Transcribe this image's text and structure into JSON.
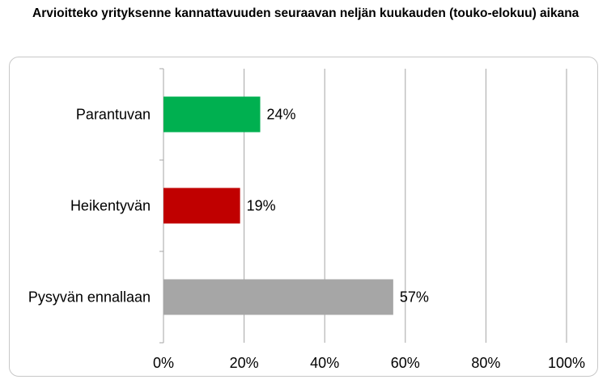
{
  "chart_data": {
    "type": "bar",
    "orientation": "horizontal",
    "title": "Arvioitteko yrityksenne kannattavuuden seuraavan neljän kuukauden (touko-elokuu) aikana",
    "categories": [
      "Parantuvan",
      "Heikentyvän",
      "Pysyvän ennallaan"
    ],
    "values": [
      24,
      19,
      57
    ],
    "value_labels": [
      "24%",
      "19%",
      "57%"
    ],
    "colors": [
      "#00b050",
      "#c00000",
      "#a6a6a6"
    ],
    "xlim": [
      0,
      100
    ],
    "xticks": [
      0,
      20,
      40,
      60,
      80,
      100
    ],
    "xtick_labels": [
      "0%",
      "20%",
      "40%",
      "60%",
      "80%",
      "100%"
    ],
    "grid": true,
    "legend": "none"
  }
}
